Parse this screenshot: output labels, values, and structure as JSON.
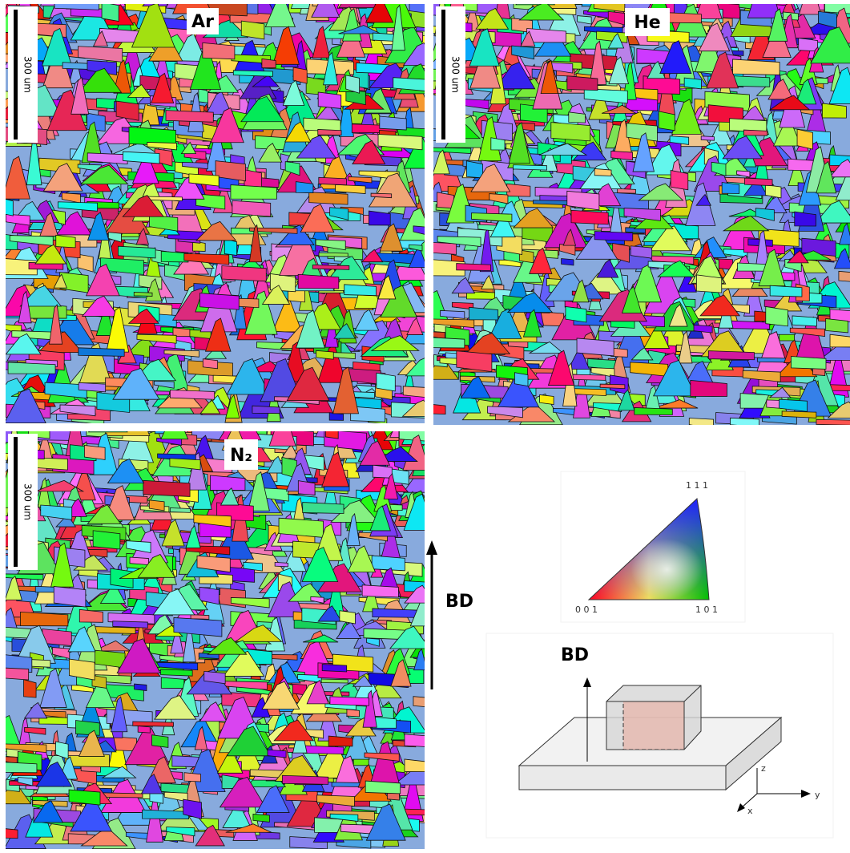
{
  "panels": [
    {
      "label": "Ar",
      "scale_bar": "300 um"
    },
    {
      "label": "He",
      "scale_bar": "300 um"
    },
    {
      "label": "N₂",
      "scale_bar": "300 um"
    }
  ],
  "build_direction": "BD",
  "legend": {
    "top": "1 1 1",
    "left": "0 0 1",
    "right": "1 0 1"
  },
  "schematic": {
    "label": "BD",
    "axes": {
      "z": "z",
      "y": "y",
      "x": "x"
    }
  }
}
